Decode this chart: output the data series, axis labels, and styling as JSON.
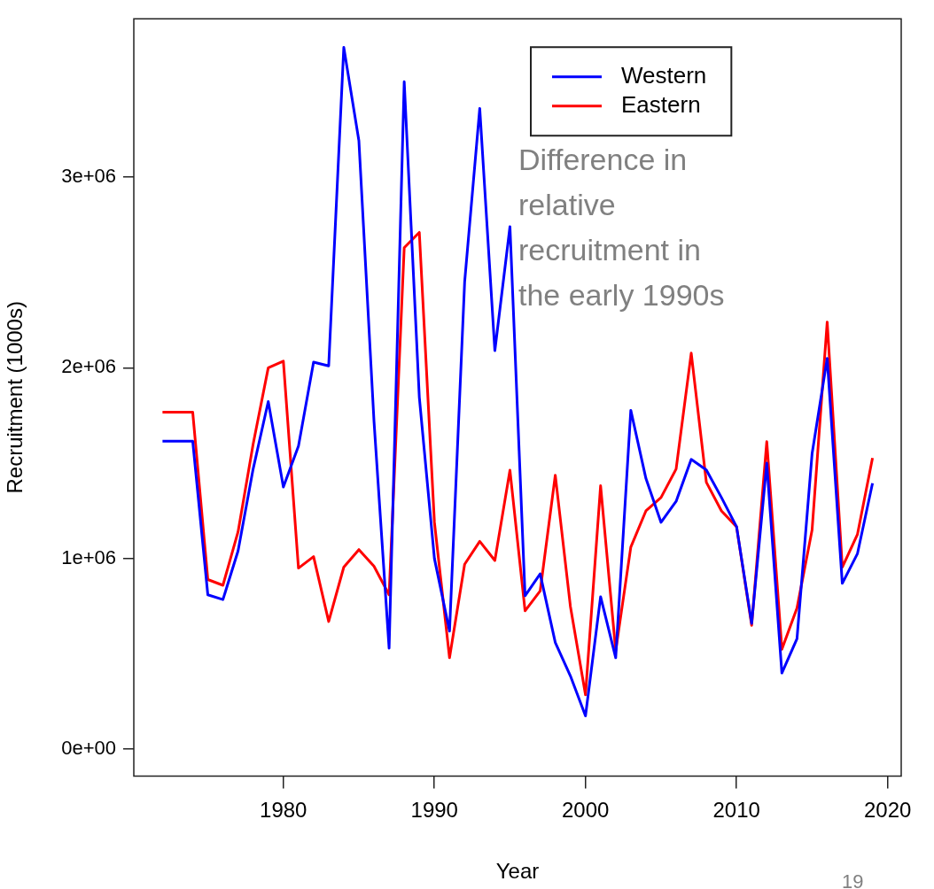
{
  "chart_data": {
    "type": "line",
    "xlabel": "Year",
    "ylabel": "Recruitment (1000s)",
    "x": [
      1972,
      1973,
      1974,
      1975,
      1976,
      1977,
      1978,
      1979,
      1980,
      1981,
      1982,
      1983,
      1984,
      1985,
      1986,
      1987,
      1988,
      1989,
      1990,
      1991,
      1992,
      1993,
      1994,
      1995,
      1996,
      1997,
      1998,
      1999,
      2000,
      2001,
      2002,
      2003,
      2004,
      2005,
      2006,
      2007,
      2008,
      2009,
      2010,
      2011,
      2012,
      2013,
      2014,
      2015,
      2016,
      2017,
      2018,
      2019
    ],
    "series": [
      {
        "name": "Western",
        "color": "#0000ff",
        "values": [
          1615000,
          1615000,
          1615000,
          810000,
          785000,
          1040000,
          1470000,
          1823000,
          1375000,
          1590000,
          2030000,
          2010000,
          3680000,
          3190000,
          1720000,
          530000,
          3500000,
          1846000,
          1000000,
          620000,
          2450000,
          3360000,
          2090000,
          2740000,
          805000,
          920000,
          560000,
          385000,
          175000,
          800000,
          480000,
          1777000,
          1420000,
          1190000,
          1300000,
          1520000,
          1465000,
          1320000,
          1167000,
          660000,
          1500000,
          400000,
          580000,
          1550000,
          2050000,
          870000,
          1025000,
          1395000
        ]
      },
      {
        "name": "Eastern",
        "color": "#ff0000",
        "values": [
          1767000,
          1767000,
          1767000,
          890000,
          860000,
          1140000,
          1600000,
          2000000,
          2035000,
          950000,
          1010000,
          670000,
          955000,
          1047000,
          960000,
          810000,
          2630000,
          2710000,
          1190000,
          480000,
          970000,
          1090000,
          990000,
          1463000,
          726000,
          830000,
          1437000,
          750000,
          286000,
          1382000,
          517000,
          1060000,
          1250000,
          1320000,
          1470000,
          2077000,
          1400000,
          1250000,
          1167000,
          650000,
          1613000,
          525000,
          740000,
          1150000,
          2240000,
          955000,
          1126000,
          1527000
        ]
      }
    ],
    "xlim": [
      1970.1,
      2020.9
    ],
    "xticks": [
      1980,
      1990,
      2000,
      2010,
      2020
    ],
    "ylim": [
      -140000,
      3830000
    ],
    "yticks": [
      {
        "value": 0,
        "label": "0e+00"
      },
      {
        "value": 1000000,
        "label": "1e+06"
      },
      {
        "value": 2000000,
        "label": "2e+06"
      },
      {
        "value": 3000000,
        "label": "3e+06"
      }
    ],
    "annotations": [
      "Difference in relative recruitment in the early 1990s",
      "19"
    ],
    "legend": "top",
    "grid": false,
    "marker": "none",
    "line_style": "solid"
  }
}
